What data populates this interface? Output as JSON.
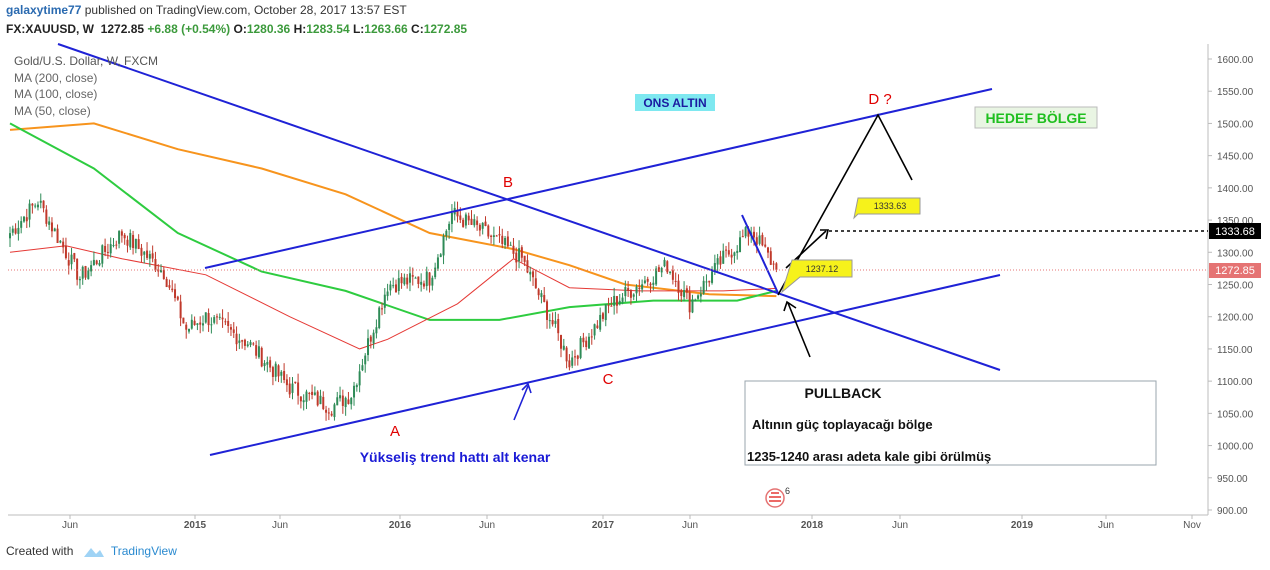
{
  "header": {
    "author": "galaxytime77",
    "published_text": "published on TradingView.com, October 28, 2017 13:57 EST",
    "symbol": "FX:XAUUSD, W",
    "last": "1272.85",
    "change": "+6.88 (+0.54%)",
    "o_label": "O:",
    "o": "1280.36",
    "h_label": "H:",
    "h": "1283.54",
    "l_label": "L:",
    "l": "1263.66",
    "c_label": "C:",
    "c": "1272.85"
  },
  "legend": {
    "title": "Gold/U.S. Dollar, W, FXCM",
    "ma200": "MA (200, close)",
    "ma100": "MA (100, close)",
    "ma50": "MA (50, close)"
  },
  "annotations": {
    "ons_altin": "ONS ALTIN",
    "hedef": "HEDEF BÖLGE",
    "label_a": "A",
    "label_b": "B",
    "label_c": "C",
    "label_d": "D ?",
    "trend_label": "Yükseliş trend hattı alt kenar",
    "callout_high": "1333.63",
    "callout_low": "1237.12",
    "pullback_title": "PULLBACK",
    "pullback_line1": "Altının güç toplayacağı bölge",
    "pullback_line2": "1235-1240 arası adeta kale gibi örülmüş",
    "event_count": "6"
  },
  "price_tags": {
    "level_1333": "1333.68",
    "current": "1272.85"
  },
  "footer": {
    "created_with": "Created with",
    "brand": "TradingView"
  },
  "colors": {
    "up": "#2e8b57",
    "down": "#c0392b",
    "ma200": "#f7941d",
    "ma100": "#2ecc40",
    "ma50": "#e53935",
    "trendline": "#1f22d6",
    "label_red": "#e00000"
  },
  "chart_data": {
    "type": "candlestick",
    "title": "Gold/U.S. Dollar, W, FXCM",
    "y_range": [
      900,
      1600
    ],
    "y_ticks": [
      1600,
      1550,
      1500,
      1450,
      1400,
      1350,
      1300,
      1250,
      1200,
      1150,
      1100,
      1050,
      1000,
      950,
      900
    ],
    "x_ticks": [
      "Jun",
      "2015",
      "Jun",
      "2016",
      "Jun",
      "2017",
      "Jun",
      "2018",
      "Jun",
      "2019",
      "Jun",
      "Nov"
    ],
    "anchors": [
      {
        "t": 0,
        "p": 1330
      },
      {
        "t": 10,
        "p": 1380
      },
      {
        "t": 25,
        "p": 1260
      },
      {
        "t": 40,
        "p": 1330
      },
      {
        "t": 55,
        "p": 1270
      },
      {
        "t": 63,
        "p": 1180
      },
      {
        "t": 70,
        "p": 1200
      },
      {
        "t": 85,
        "p": 1160
      },
      {
        "t": 100,
        "p": 1090
      },
      {
        "t": 115,
        "p": 1060
      },
      {
        "t": 122,
        "p": 1080
      },
      {
        "t": 135,
        "p": 1250
      },
      {
        "t": 150,
        "p": 1260
      },
      {
        "t": 158,
        "p": 1360
      },
      {
        "t": 170,
        "p": 1330
      },
      {
        "t": 183,
        "p": 1290
      },
      {
        "t": 195,
        "p": 1180
      },
      {
        "t": 200,
        "p": 1130
      },
      {
        "t": 215,
        "p": 1220
      },
      {
        "t": 225,
        "p": 1250
      },
      {
        "t": 235,
        "p": 1280
      },
      {
        "t": 243,
        "p": 1220
      },
      {
        "t": 255,
        "p": 1290
      },
      {
        "t": 265,
        "p": 1335
      },
      {
        "t": 274,
        "p": 1273
      }
    ],
    "current_price": 1272.85,
    "levels": {
      "target_high": 1333.63,
      "support": 1237.12,
      "dotted": 1333.68
    },
    "moving_averages": [
      "MA (200, close)",
      "MA (100, close)",
      "MA (50, close)"
    ]
  }
}
